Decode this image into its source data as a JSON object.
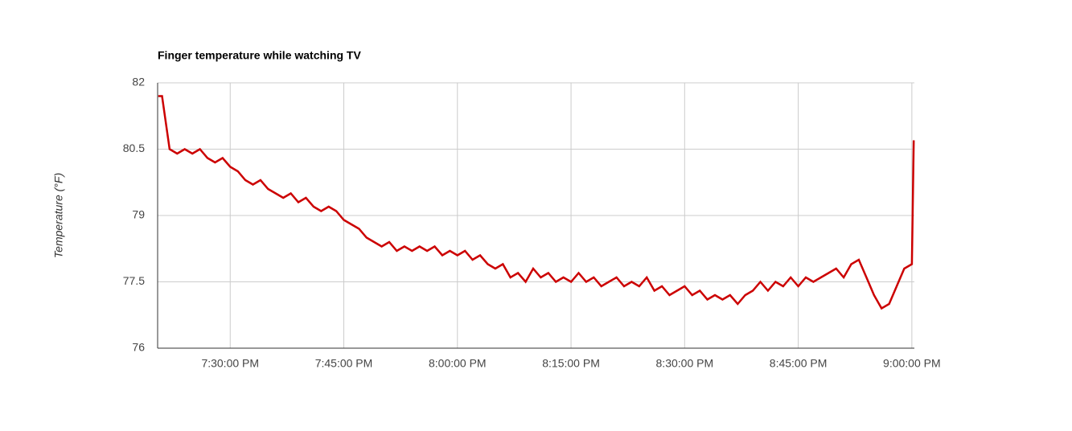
{
  "chart_data": {
    "type": "line",
    "title": "Finger temperature while watching TV",
    "y_label": "Temperature (°F)",
    "x": [
      "7:20:30 PM",
      "7:21:00 PM",
      "7:22:00 PM",
      "7:23:00 PM",
      "7:24:00 PM",
      "7:25:00 PM",
      "7:26:00 PM",
      "7:27:00 PM",
      "7:28:00 PM",
      "7:29:00 PM",
      "7:30:00 PM",
      "7:31:00 PM",
      "7:32:00 PM",
      "7:33:00 PM",
      "7:34:00 PM",
      "7:35:00 PM",
      "7:36:00 PM",
      "7:37:00 PM",
      "7:38:00 PM",
      "7:39:00 PM",
      "7:40:00 PM",
      "7:41:00 PM",
      "7:42:00 PM",
      "7:43:00 PM",
      "7:44:00 PM",
      "7:45:00 PM",
      "7:46:00 PM",
      "7:47:00 PM",
      "7:48:00 PM",
      "7:49:00 PM",
      "7:50:00 PM",
      "7:51:00 PM",
      "7:52:00 PM",
      "7:53:00 PM",
      "7:54:00 PM",
      "7:55:00 PM",
      "7:56:00 PM",
      "7:57:00 PM",
      "7:58:00 PM",
      "7:59:00 PM",
      "8:00:00 PM",
      "8:01:00 PM",
      "8:02:00 PM",
      "8:03:00 PM",
      "8:04:00 PM",
      "8:05:00 PM",
      "8:06:00 PM",
      "8:07:00 PM",
      "8:08:00 PM",
      "8:09:00 PM",
      "8:10:00 PM",
      "8:11:00 PM",
      "8:12:00 PM",
      "8:13:00 PM",
      "8:14:00 PM",
      "8:15:00 PM",
      "8:16:00 PM",
      "8:17:00 PM",
      "8:18:00 PM",
      "8:19:00 PM",
      "8:20:00 PM",
      "8:21:00 PM",
      "8:22:00 PM",
      "8:23:00 PM",
      "8:24:00 PM",
      "8:25:00 PM",
      "8:26:00 PM",
      "8:27:00 PM",
      "8:28:00 PM",
      "8:29:00 PM",
      "8:30:00 PM",
      "8:31:00 PM",
      "8:32:00 PM",
      "8:33:00 PM",
      "8:34:00 PM",
      "8:35:00 PM",
      "8:36:00 PM",
      "8:37:00 PM",
      "8:38:00 PM",
      "8:39:00 PM",
      "8:40:00 PM",
      "8:41:00 PM",
      "8:42:00 PM",
      "8:43:00 PM",
      "8:44:00 PM",
      "8:45:00 PM",
      "8:46:00 PM",
      "8:47:00 PM",
      "8:48:00 PM",
      "8:49:00 PM",
      "8:50:00 PM",
      "8:51:00 PM",
      "8:52:00 PM",
      "8:53:00 PM",
      "8:54:00 PM",
      "8:55:00 PM",
      "8:56:00 PM",
      "8:57:00 PM",
      "8:58:00 PM",
      "8:59:00 PM",
      "9:00:00 PM",
      "9:00:15 PM"
    ],
    "series": [
      {
        "name": "Temperature",
        "color": "#cc0000",
        "values": [
          81.7,
          81.7,
          80.5,
          80.4,
          80.5,
          80.4,
          80.5,
          80.3,
          80.2,
          80.3,
          80.1,
          80.0,
          79.8,
          79.7,
          79.8,
          79.6,
          79.5,
          79.4,
          79.5,
          79.3,
          79.4,
          79.2,
          79.1,
          79.2,
          79.1,
          78.9,
          78.8,
          78.7,
          78.5,
          78.4,
          78.3,
          78.4,
          78.2,
          78.3,
          78.2,
          78.3,
          78.2,
          78.3,
          78.1,
          78.2,
          78.1,
          78.2,
          78.0,
          78.1,
          77.9,
          77.8,
          77.9,
          77.6,
          77.7,
          77.5,
          77.8,
          77.6,
          77.7,
          77.5,
          77.6,
          77.5,
          77.7,
          77.5,
          77.6,
          77.4,
          77.5,
          77.6,
          77.4,
          77.5,
          77.4,
          77.6,
          77.3,
          77.4,
          77.2,
          77.3,
          77.4,
          77.2,
          77.3,
          77.1,
          77.2,
          77.1,
          77.2,
          77.0,
          77.2,
          77.3,
          77.5,
          77.3,
          77.5,
          77.4,
          77.6,
          77.4,
          77.6,
          77.5,
          77.6,
          77.7,
          77.8,
          77.6,
          77.9,
          78.0,
          77.6,
          77.2,
          76.9,
          77.0,
          77.4,
          77.8,
          77.9,
          80.7
        ]
      }
    ],
    "xlim": [
      "7:20:25 PM",
      "9:00:20 PM"
    ],
    "xticks": [
      "7:30:00 PM",
      "7:45:00 PM",
      "8:00:00 PM",
      "8:15:00 PM",
      "8:30:00 PM",
      "8:45:00 PM",
      "9:00:00 PM"
    ],
    "ylim": [
      76,
      82
    ],
    "yticks": [
      76,
      77.5,
      79,
      80.5,
      82
    ],
    "grid": true
  }
}
